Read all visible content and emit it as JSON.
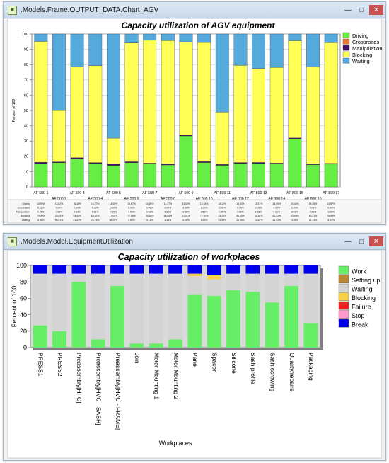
{
  "top_window": {
    "title": ".Models.Frame.OUTPUT_DATA.Chart_AGV",
    "controls": [
      "minimize-icon",
      "maximize-icon",
      "close-icon"
    ]
  },
  "bottom_window": {
    "title": ".Models.Model.EquipmentUtilization",
    "controls": [
      "minimize-icon",
      "maximize-icon",
      "close-icon"
    ]
  },
  "chart_data": [
    {
      "type": "bar",
      "stacked": true,
      "title": "Capacity utilization of AGV equipment",
      "xlabel": "",
      "ylabel": "Percent of 100",
      "ylim": [
        0,
        100
      ],
      "yticks": [
        0,
        10,
        20,
        30,
        40,
        50,
        60,
        70,
        80,
        90,
        100
      ],
      "grid": true,
      "legend_position": "right",
      "categories": [
        "AF 500 1",
        "AF 500 2",
        "AF 500 3",
        "AF 500 4",
        "AF 500 5",
        "AF 500 6",
        "AF 500 7",
        "AF 500 8",
        "AF 500 9",
        "AF 800 10",
        "AF 800 11",
        "AF 800 12",
        "AF 800 13",
        "AF 800 14",
        "AF 800 15",
        "AF 800 16",
        "AF 800 17"
      ],
      "series": [
        {
          "name": "Driving",
          "color": "#66ee44",
          "values": [
            14.99,
            15.82,
            18.48,
            15.27,
            14.06,
            15.87,
            14.96,
            14.37,
            33.33,
            15.94,
            14.12,
            15.34,
            15.37,
            14.95,
            31.44,
            14.55,
            14.87
          ]
        },
        {
          "name": "Crossroads",
          "color": "#ee7733",
          "values": [
            0.21,
            0.0,
            0.0,
            0.05,
            0.0,
            0.0,
            0.06,
            0.0,
            0.0,
            0.0,
            0.0,
            0.05,
            0.05,
            0.0,
            0.0,
            0.05,
            0.0
          ]
        },
        {
          "name": "Manipulation",
          "color": "#441166",
          "values": [
            0.95,
            0.58,
            0.63,
            0.61,
            0.85,
            0.59,
            0.52,
            0.63,
            0.58,
            0.58,
            0.58,
            0.56,
            0.58,
            0.61,
            0.58,
            0.56,
            0.5
          ]
        },
        {
          "name": "Blocking",
          "color": "#ffff55",
          "values": [
            79.0,
            33.59,
            59.4,
            63.31,
            17.0,
            77.68,
            80.35,
            80.66,
            61.01,
            77.92,
            34.21,
            63.5,
            61.38,
            62.52,
            63.58,
            63.41,
            78.99
          ]
        },
        {
          "name": "Waiting",
          "color": "#55aadd",
          "values": [
            4.85,
            50.01,
            21.47,
            20.76,
            68.09,
            5.86,
            4.11,
            4.34,
            5.08,
            5.56,
            51.09,
            20.55,
            22.62,
            21.92,
            4.4,
            21.43,
            5.64
          ]
        }
      ],
      "table": {
        "rows": [
          "Driving",
          "Crossroads",
          "Manipulation",
          "Blocking",
          "Waiting"
        ],
        "cells": [
          [
            "14.99%",
            "15.82%",
            "18.48%",
            "15.27%",
            "14.06%",
            "15.87%",
            "14.96%",
            "14.37%",
            "33.33%",
            "15.94%",
            "14.12%",
            "15.34%",
            "15.37%",
            "14.95%",
            "31.44%",
            "14.55%",
            "14.87%"
          ],
          [
            "0.21%",
            "0.00%",
            "0.00%",
            "0.05%",
            "0.00%",
            "0.00%",
            "0.06%",
            "0.00%",
            "0.00%",
            "0.00%",
            "0.00%",
            "0.05%",
            "0.05%",
            "0.00%",
            "0.00%",
            "0.05%",
            "0.00%"
          ],
          [
            "0.95%",
            "0.58%",
            "0.63%",
            "0.61%",
            "0.85%",
            "0.59%",
            "0.52%",
            "0.63%",
            "0.58%",
            "0.58%",
            "0.58%",
            "0.56%",
            "0.58%",
            "0.61%",
            "0.58%",
            "0.56%",
            "0.50%"
          ],
          [
            "79.00%",
            "33.59%",
            "59.40%",
            "63.31%",
            "17.00%",
            "77.68%",
            "80.35%",
            "80.66%",
            "61.01%",
            "77.92%",
            "34.21%",
            "63.50%",
            "61.38%",
            "62.52%",
            "63.58%",
            "63.41%",
            "78.99%"
          ],
          [
            "4.85%",
            "50.01%",
            "21.47%",
            "20.76%",
            "68.09%",
            "5.86%",
            "4.11%",
            "4.34%",
            "5.08%",
            "5.56%",
            "51.09%",
            "20.55%",
            "22.62%",
            "21.92%",
            "4.40%",
            "21.43%",
            "5.64%"
          ]
        ]
      }
    },
    {
      "type": "bar",
      "stacked": true,
      "title": "Capacity utilization of workplaces",
      "xlabel": "Workplaces",
      "ylabel": "Percent of 100",
      "ylim": [
        0,
        100
      ],
      "yticks": [
        0,
        20,
        40,
        60,
        80,
        100
      ],
      "grid": false,
      "legend_position": "right",
      "categories": [
        "PRESS1",
        "PRESS2",
        "Preassembly[HFC]",
        "Preassembly[HVC - SASH]",
        "Preassembly[HVC - FRAME]",
        "Join",
        "Motor Mounting 1",
        "Motor Mounting 2",
        "Pane",
        "Spacer",
        "Silicone",
        "Sash profile",
        "Sash screwing",
        "Quality/repaire",
        "Packaging"
      ],
      "series": [
        {
          "name": "Work",
          "color": "#66ee66",
          "values": [
            27,
            20,
            80,
            10,
            75,
            5,
            5,
            10,
            65,
            63,
            70,
            68,
            55,
            75,
            30
          ]
        },
        {
          "name": "Setting up",
          "color": "#bb8833",
          "values": [
            0,
            0,
            0,
            0,
            0,
            0,
            0,
            0,
            0,
            0,
            0,
            0,
            0,
            0,
            0
          ]
        },
        {
          "name": "Waiting",
          "color": "#d4d4d4",
          "values": [
            63,
            70,
            10,
            80,
            15,
            85,
            85,
            80,
            22,
            20,
            20,
            22,
            35,
            15,
            60
          ]
        },
        {
          "name": "Blocking",
          "color": "#f5d247",
          "values": [
            0,
            0,
            0,
            0,
            0,
            0,
            0,
            0,
            3,
            5,
            0,
            0,
            0,
            0,
            0
          ]
        },
        {
          "name": "Failure",
          "color": "#ee2222",
          "values": [
            0,
            0,
            0,
            0,
            0,
            0,
            0,
            0,
            0,
            0,
            0,
            0,
            0,
            0,
            0
          ]
        },
        {
          "name": "Stop",
          "color": "#ff99cc",
          "values": [
            0,
            0,
            0,
            0,
            0,
            0,
            0,
            0,
            0,
            0,
            0,
            0,
            0,
            0,
            0
          ]
        },
        {
          "name": "Break",
          "color": "#0000ee",
          "values": [
            10,
            10,
            10,
            10,
            10,
            10,
            10,
            10,
            10,
            12,
            10,
            10,
            10,
            10,
            10
          ]
        }
      ]
    }
  ]
}
